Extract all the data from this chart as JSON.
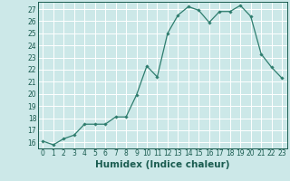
{
  "x": [
    0,
    1,
    2,
    3,
    4,
    5,
    6,
    7,
    8,
    9,
    10,
    11,
    12,
    13,
    14,
    15,
    16,
    17,
    18,
    19,
    20,
    21,
    22,
    23
  ],
  "y": [
    16.1,
    15.8,
    16.3,
    16.6,
    17.5,
    17.5,
    17.5,
    18.1,
    18.1,
    19.9,
    22.3,
    21.4,
    25.0,
    26.5,
    27.2,
    26.9,
    25.9,
    26.8,
    26.8,
    27.3,
    26.4,
    23.3,
    22.2,
    21.3
  ],
  "line_color": "#2e7d6e",
  "marker": "D",
  "marker_size": 1.8,
  "bg_color": "#cce8e8",
  "grid_color": "#ffffff",
  "xlabel": "Humidex (Indice chaleur)",
  "ylim": [
    15.5,
    27.6
  ],
  "xlim": [
    -0.5,
    23.5
  ],
  "yticks": [
    16,
    17,
    18,
    19,
    20,
    21,
    22,
    23,
    24,
    25,
    26,
    27
  ],
  "xticks": [
    0,
    1,
    2,
    3,
    4,
    5,
    6,
    7,
    8,
    9,
    10,
    11,
    12,
    13,
    14,
    15,
    16,
    17,
    18,
    19,
    20,
    21,
    22,
    23
  ],
  "tick_label_fontsize": 5.5,
  "xlabel_fontsize": 7.5,
  "tick_color": "#1a5c50",
  "spine_color": "#1a5c50",
  "linewidth": 0.9
}
